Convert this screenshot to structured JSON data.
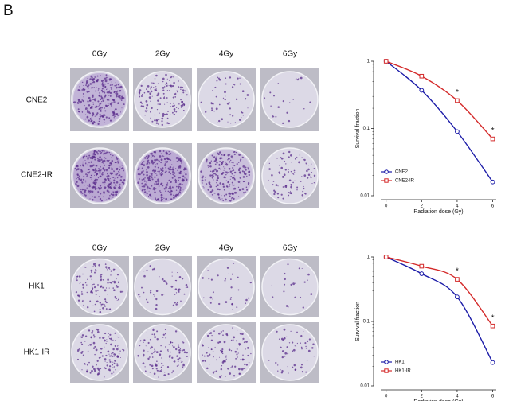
{
  "panel_label": "B",
  "plates": [
    {
      "columns": [
        "0Gy",
        "2Gy",
        "4Gy",
        "6Gy"
      ],
      "rows": [
        "CNE2",
        "CNE2-IR"
      ]
    },
    {
      "columns": [
        "0Gy",
        "2Gy",
        "4Gy",
        "6Gy"
      ],
      "rows": [
        "HK1",
        "HK1-IR"
      ]
    }
  ],
  "chart_data": [
    {
      "type": "line",
      "log_y": true,
      "xlabel": "Radiation dose (Gy)",
      "ylabel": "Survival fraction",
      "x": [
        0,
        2,
        4,
        6
      ],
      "xlim": [
        -0.3,
        6.2
      ],
      "xticks": [
        0,
        2,
        4,
        6
      ],
      "ylim": [
        0.01,
        1
      ],
      "yticks": [
        1,
        0.1,
        0.01
      ],
      "legend": "lower left",
      "series": [
        {
          "name": "CNE2",
          "color": "#1c1ca8",
          "marker": "circle",
          "values": [
            1,
            0.37,
            0.09,
            0.016
          ]
        },
        {
          "name": "CNE2-IR",
          "color": "#d42a2a",
          "marker": "square",
          "values": [
            1,
            0.6,
            0.26,
            0.07
          ]
        }
      ],
      "annotations": [
        {
          "text": "*",
          "x": 4
        },
        {
          "text": "*",
          "x": 6
        }
      ]
    },
    {
      "type": "line",
      "log_y": true,
      "xlabel": "Radiation dose (Gy)",
      "ylabel": "Survival fraction",
      "x": [
        0,
        2,
        4,
        6
      ],
      "xlim": [
        -0.3,
        6.2
      ],
      "xticks": [
        0,
        2,
        4,
        6
      ],
      "ylim": [
        0.01,
        1
      ],
      "yticks": [
        1,
        0.1,
        0.01
      ],
      "legend": "lower left",
      "series": [
        {
          "name": "HK1",
          "color": "#1c1ca8",
          "marker": "circle",
          "values": [
            1,
            0.55,
            0.24,
            0.023
          ]
        },
        {
          "name": "HK1-IR",
          "color": "#d42a2a",
          "marker": "square",
          "values": [
            1,
            0.72,
            0.45,
            0.085
          ]
        }
      ],
      "annotations": [
        {
          "text": "*",
          "x": 4
        },
        {
          "text": "*",
          "x": 6
        }
      ]
    }
  ]
}
